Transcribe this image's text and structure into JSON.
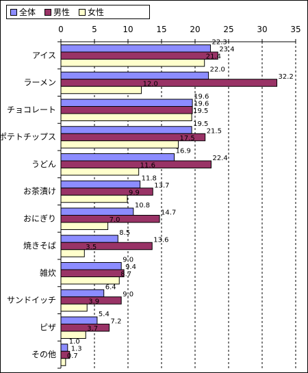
{
  "chart_data": {
    "type": "bar",
    "orientation": "horizontal",
    "categories": [
      "アイス",
      "ラーメン",
      "チョコレート",
      "ポテトチップス",
      "うどん",
      "お茶漬け",
      "おにぎり",
      "焼きそば",
      "雑炊",
      "サンドイッチ",
      "ピザ",
      "その他"
    ],
    "series": [
      {
        "name": "全体",
        "color": "#8c8cff",
        "values": [
          22.3,
          22.0,
          19.6,
          19.5,
          16.9,
          11.8,
          10.8,
          8.5,
          9.0,
          6.4,
          5.4,
          1.0
        ]
      },
      {
        "name": "男性",
        "color": "#993366",
        "values": [
          23.4,
          32.2,
          19.6,
          21.5,
          22.4,
          13.7,
          14.7,
          13.6,
          9.4,
          9.0,
          7.2,
          1.3
        ]
      },
      {
        "name": "女性",
        "color": "#ffffcc",
        "values": [
          21.4,
          12.0,
          19.5,
          17.5,
          11.6,
          9.9,
          7.0,
          3.5,
          8.7,
          3.9,
          3.7,
          0.7
        ]
      }
    ],
    "xlim": [
      0,
      35
    ],
    "x_ticks": [
      "0",
      "5",
      "10",
      "15",
      "20",
      "25",
      "30",
      "35"
    ],
    "grid": "vertical dashed",
    "legend_position": "top-left"
  }
}
